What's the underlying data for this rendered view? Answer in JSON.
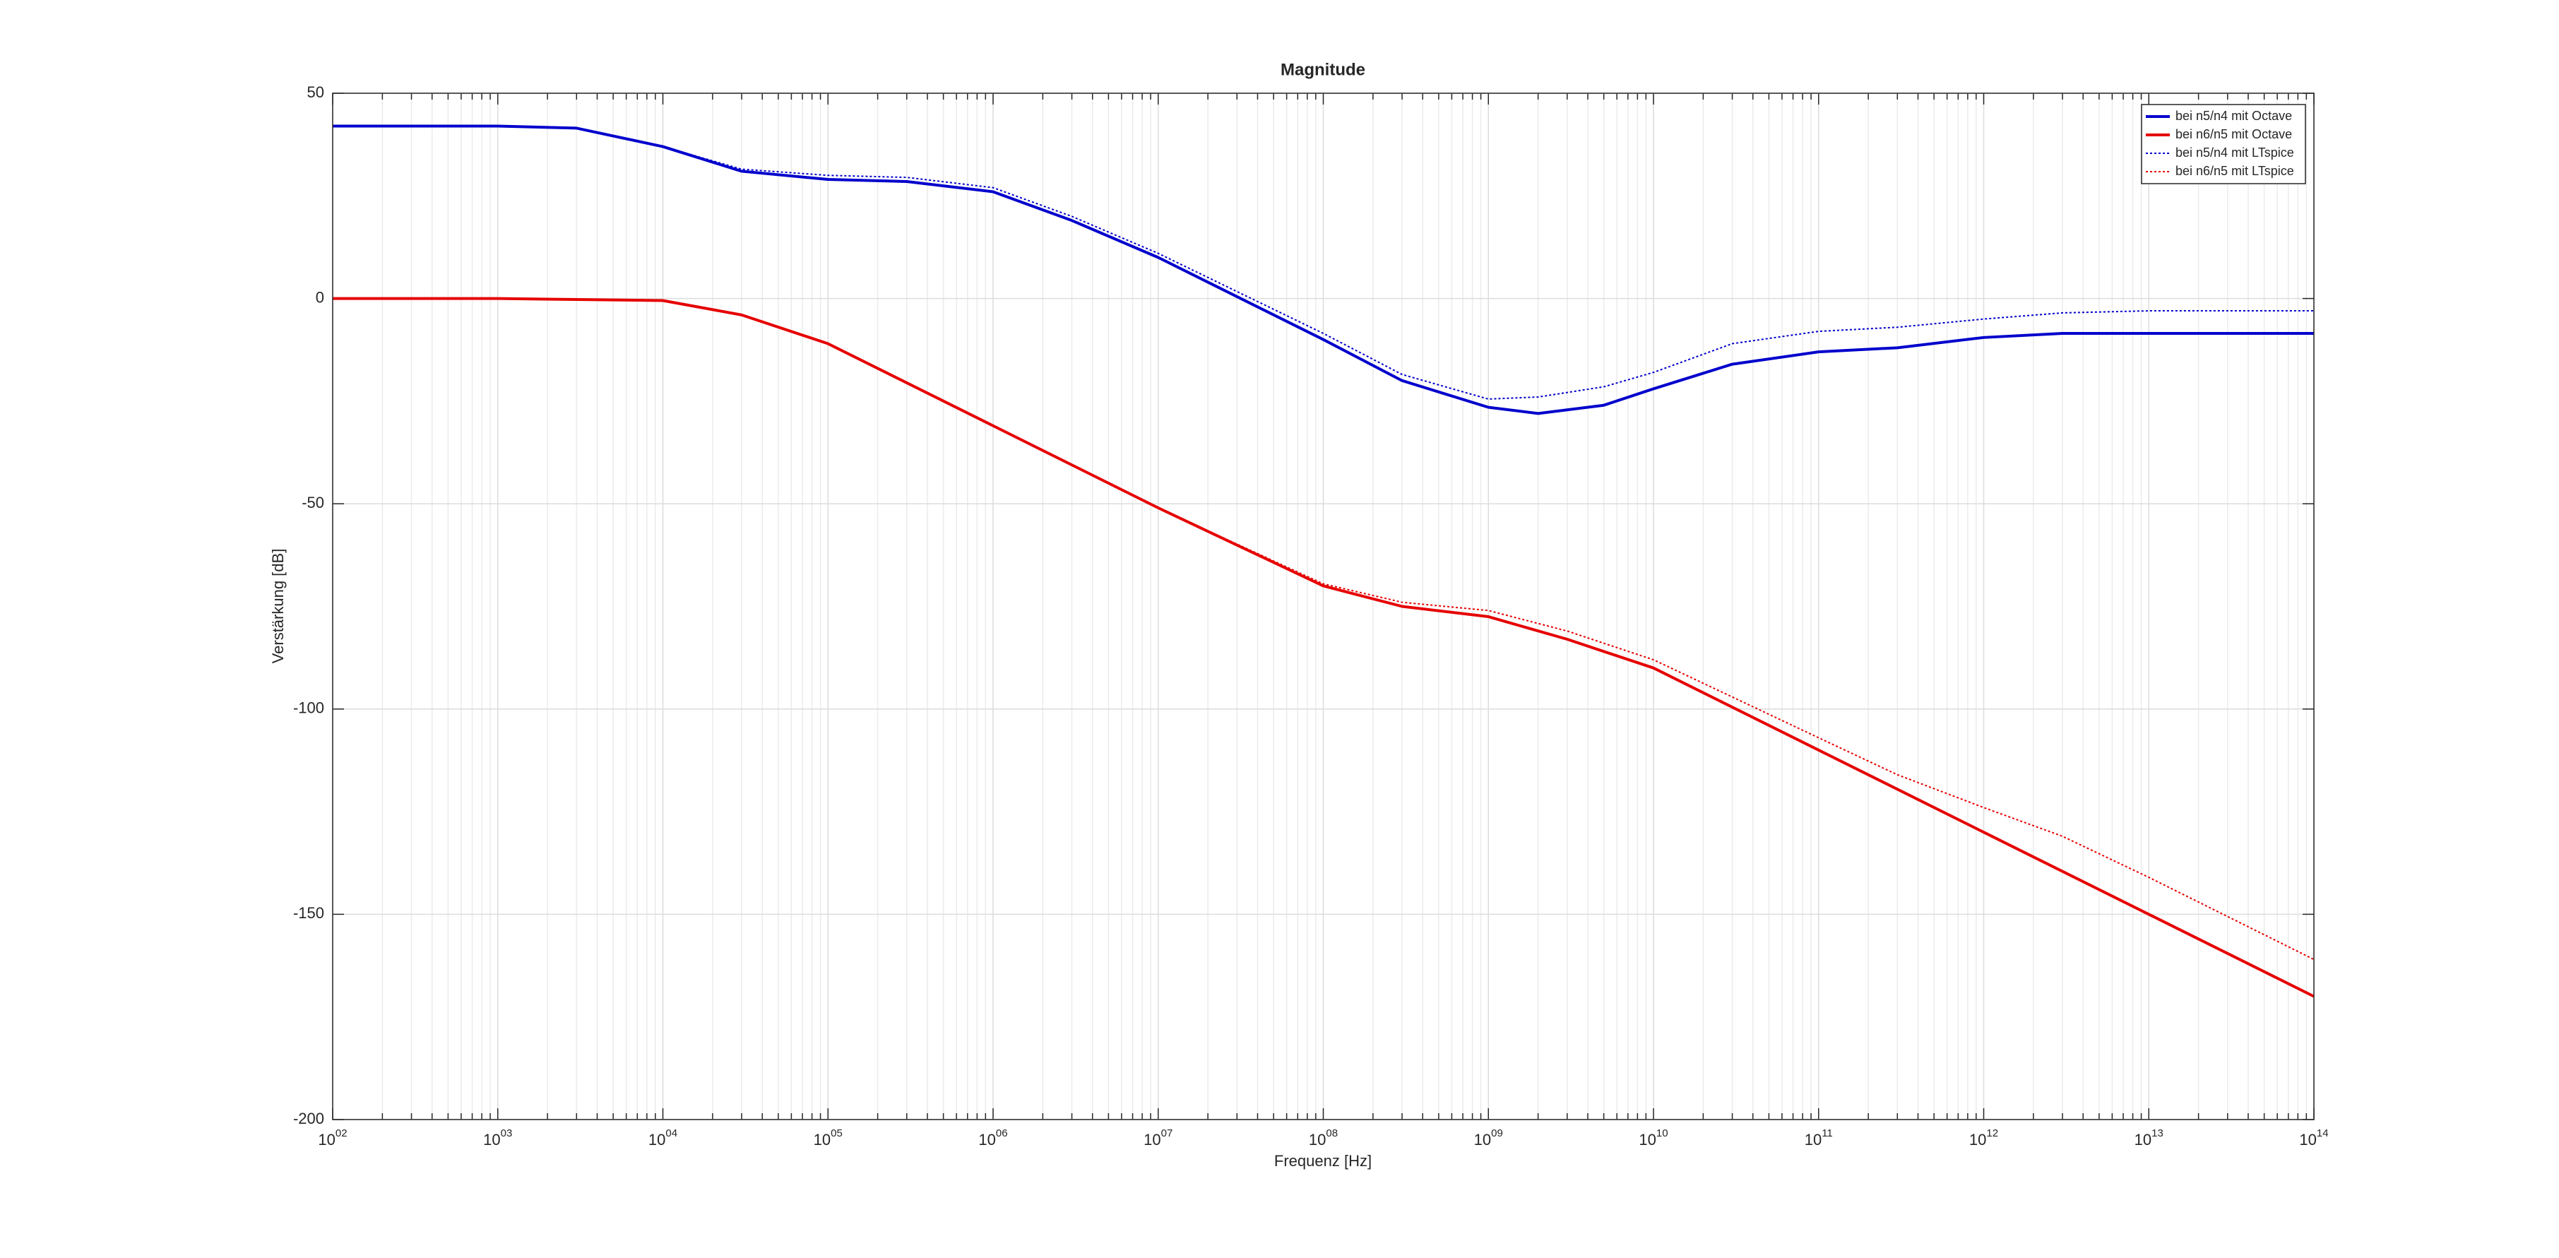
{
  "chart_data": {
    "type": "line",
    "title": "Magnitude",
    "x_label": "Frequenz [Hz]",
    "y_label": "Verstärkung [dB]",
    "xscale": "log",
    "grid": true,
    "minor_grid": true,
    "legend": "northeast",
    "xlim": [
      100,
      100000000000000
    ],
    "ylim": [
      -200,
      50
    ],
    "xticks": [
      {
        "value": 100,
        "label": "10^02"
      },
      {
        "value": 1000,
        "label": "10^03"
      },
      {
        "value": 10000,
        "label": "10^04"
      },
      {
        "value": 100000,
        "label": "10^05"
      },
      {
        "value": 1000000,
        "label": "10^06"
      },
      {
        "value": 10000000,
        "label": "10^07"
      },
      {
        "value": 100000000,
        "label": "10^08"
      },
      {
        "value": 1000000000,
        "label": "10^09"
      },
      {
        "value": 10000000000,
        "label": "10^10"
      },
      {
        "value": 100000000000,
        "label": "10^11"
      },
      {
        "value": 1000000000000,
        "label": "10^12"
      },
      {
        "value": 10000000000000,
        "label": "10^13"
      },
      {
        "value": 100000000000000,
        "label": "10^14"
      }
    ],
    "yticks": [
      -200,
      -150,
      -100,
      -50,
      0,
      50
    ],
    "series": [
      {
        "name": "bei n5/n4 mit Octave",
        "color": "#0000cc",
        "linestyle": "solid",
        "x": [
          100,
          1000,
          3000,
          10000,
          30000,
          100000,
          300000,
          1000000,
          3000000,
          10000000,
          100000000,
          300000000,
          1000000000,
          2000000000,
          5000000000,
          10000000000,
          30000000000,
          100000000000,
          300000000000,
          1000000000000,
          3000000000000,
          10000000000000,
          100000000000000
        ],
        "values": [
          42,
          42,
          41.5,
          37,
          31,
          29,
          28.5,
          26,
          19,
          10,
          -10,
          -20,
          -26.5,
          -28,
          -26,
          -22,
          -16,
          -13,
          -12,
          -9.5,
          -8.5,
          -8.5,
          -8.5
        ]
      },
      {
        "name": "bei n6/n5 mit Octave",
        "color": "#e60000",
        "linestyle": "solid",
        "x": [
          100,
          1000,
          10000,
          30000,
          100000,
          1000000,
          10000000,
          100000000,
          300000000,
          1000000000,
          3000000000,
          10000000000,
          100000000000,
          1000000000000,
          10000000000000,
          100000000000000
        ],
        "values": [
          0,
          0,
          -0.5,
          -4,
          -11,
          -31,
          -51,
          -70,
          -75,
          -77.5,
          -83,
          -90,
          -110,
          -130,
          -150,
          -170
        ]
      },
      {
        "name": "bei n5/n4 mit LTspice",
        "color": "#0000cc",
        "linestyle": "dotted",
        "x": [
          100,
          1000,
          3000,
          10000,
          30000,
          100000,
          300000,
          1000000,
          3000000,
          10000000,
          100000000,
          300000000,
          1000000000,
          2000000000,
          5000000000,
          10000000000,
          30000000000,
          100000000000,
          300000000000,
          1000000000000,
          3000000000000,
          10000000000000,
          100000000000000
        ],
        "values": [
          42,
          42,
          41.5,
          37,
          31.5,
          30,
          29.5,
          27,
          20,
          11,
          -8.5,
          -18.5,
          -24.5,
          -24,
          -21.5,
          -18,
          -11,
          -8,
          -7,
          -5,
          -3.5,
          -3,
          -3
        ]
      },
      {
        "name": "bei n6/n5 mit LTspice",
        "color": "#e60000",
        "linestyle": "dotted",
        "x": [
          100,
          1000,
          10000,
          30000,
          100000,
          1000000,
          10000000,
          100000000,
          300000000,
          1000000000,
          3000000000,
          10000000000,
          100000000000,
          300000000000,
          1000000000000,
          3000000000000,
          10000000000000,
          100000000000000
        ],
        "values": [
          0,
          0,
          -0.5,
          -4,
          -11,
          -31,
          -51,
          -69.5,
          -74,
          -76,
          -81,
          -88,
          -107,
          -116,
          -124,
          -131,
          -141,
          -161
        ]
      }
    ]
  }
}
